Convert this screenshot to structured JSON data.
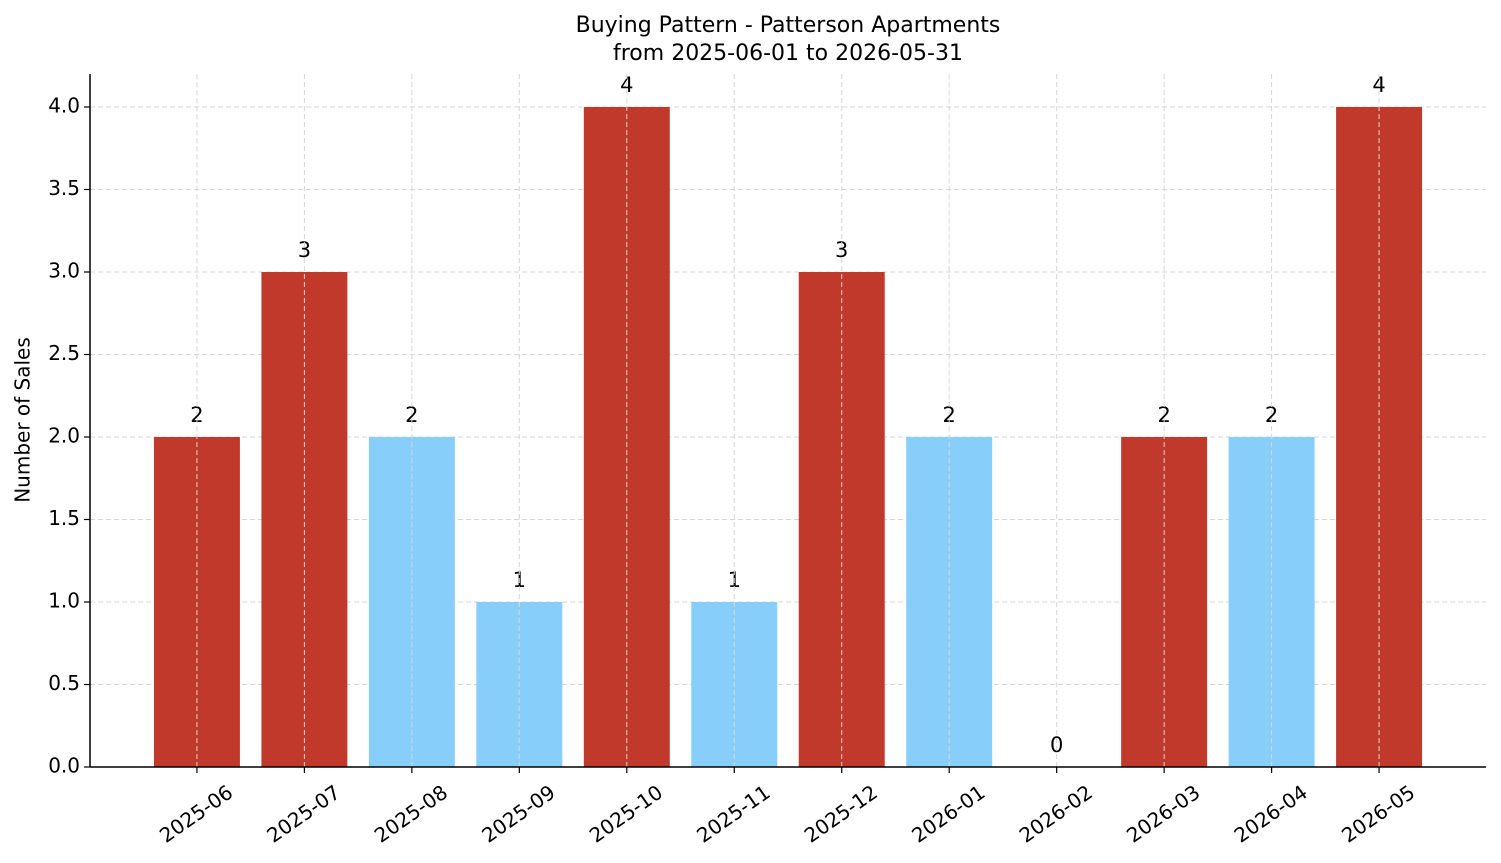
{
  "chart_data": {
    "type": "bar",
    "title": "Buying Pattern - Patterson Apartments",
    "subtitle": "from 2025-06-01 to 2026-05-31",
    "ylabel": "Number of Sales",
    "categories": [
      "2025-06",
      "2025-07",
      "2025-08",
      "2025-09",
      "2025-10",
      "2025-11",
      "2025-12",
      "2026-01",
      "2026-02",
      "2026-03",
      "2026-04",
      "2026-05"
    ],
    "values": [
      2,
      3,
      2,
      1,
      4,
      1,
      3,
      2,
      0,
      2,
      2,
      4
    ],
    "colors": [
      "#c0392b",
      "#c0392b",
      "#87cefa",
      "#87cefa",
      "#c0392b",
      "#87cefa",
      "#c0392b",
      "#87cefa",
      "#87cefa",
      "#c0392b",
      "#87cefa",
      "#c0392b"
    ],
    "ylim": [
      0,
      4.2
    ],
    "yticks": [
      {
        "value": 0,
        "label": "0.0"
      },
      0.5,
      {
        "value": 1,
        "label": "1.0"
      },
      1.5,
      {
        "value": 2,
        "label": "2.0"
      },
      2.5,
      {
        "value": 3,
        "label": "3.0"
      },
      3.5,
      {
        "value": 4,
        "label": "4.0"
      }
    ],
    "grid": true
  }
}
